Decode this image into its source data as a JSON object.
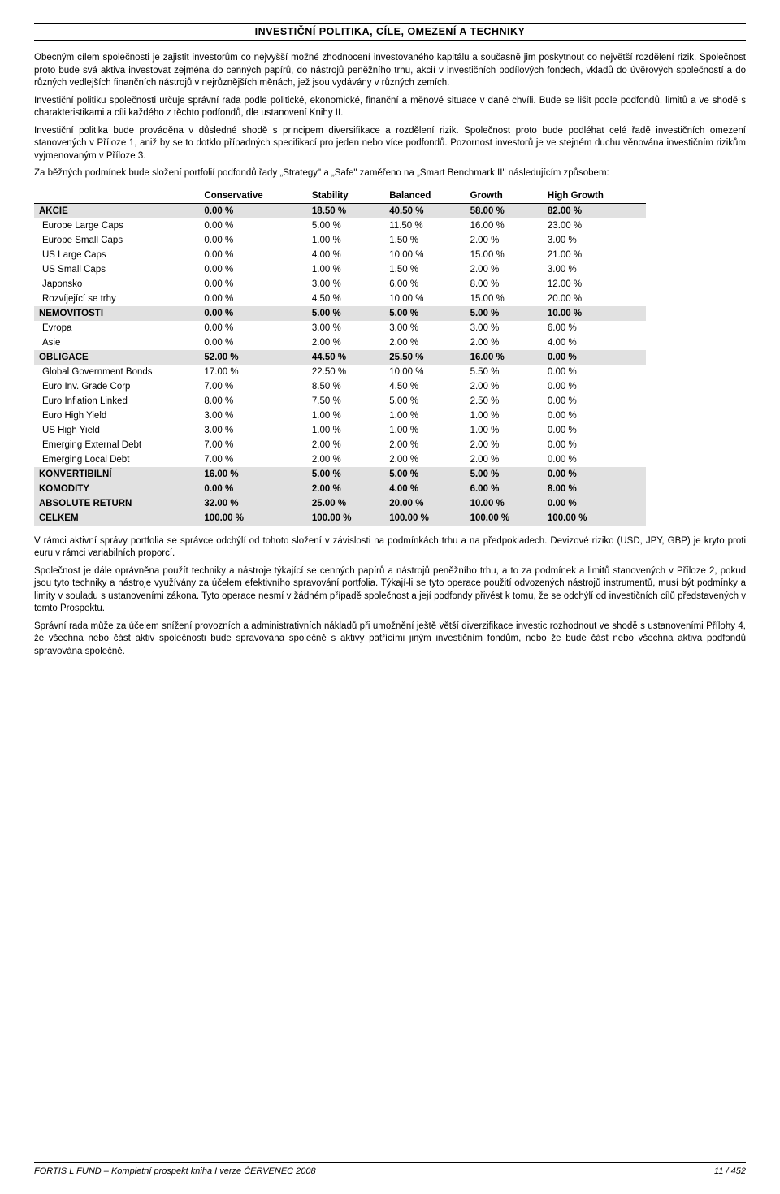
{
  "header": {
    "title": "INVESTIČNÍ POLITIKA, CÍLE, OMEZENÍ A TECHNIKY"
  },
  "paragraphs_top": [
    "Obecným cílem společnosti je zajistit investorům co nejvyšší možné zhodnocení investovaného kapitálu a současně jim poskytnout co největší rozdělení rizik. Společnost proto bude svá aktiva investovat zejména do cenných papírů, do nástrojů peněžního trhu, akcií v investičních podílových fondech, vkladů do úvěrových společností a do různých vedlejších finančních nástrojů v nejrůznějších měnách, jež jsou vydávány v různých zemích.",
    "Investiční politiku společnosti určuje správní rada podle politické, ekonomické, finanční a měnové situace v dané chvíli. Bude se lišit podle podfondů, limitů a ve shodě s charakteristikami a cíli každého z těchto podfondů, dle ustanovení Knihy II.",
    "Investiční politika bude prováděna v důsledné shodě s principem diversifikace a rozdělení rizik. Společnost proto bude podléhat celé řadě investičních omezení stanovených v Příloze 1, aniž by se to dotklo případných specifikací pro jeden nebo více podfondů. Pozornost investorů je ve stejném duchu věnována investičním rizikům vyjmenovaným v Příloze 3.",
    "Za běžných podmínek bude složení portfolií podfondů řady „Strategy\" a „Safe\" zaměřeno na „Smart Benchmark II\" následujícím způsobem:"
  ],
  "table": {
    "columns": [
      "",
      "Conservative",
      "Stability",
      "Balanced",
      "Growth",
      "High Growth"
    ],
    "rows": [
      {
        "cat": true,
        "cells": [
          "AKCIE",
          "0.00 %",
          "18.50 %",
          "40.50 %",
          "58.00 %",
          "82.00 %"
        ]
      },
      {
        "cat": false,
        "cells": [
          "Europe Large Caps",
          "0.00 %",
          "5.00 %",
          "11.50 %",
          "16.00 %",
          "23.00 %"
        ]
      },
      {
        "cat": false,
        "cells": [
          "Europe Small Caps",
          "0.00 %",
          "1.00 %",
          "1.50 %",
          "2.00 %",
          "3.00 %"
        ]
      },
      {
        "cat": false,
        "cells": [
          "US Large Caps",
          "0.00 %",
          "4.00 %",
          "10.00 %",
          "15.00 %",
          "21.00 %"
        ]
      },
      {
        "cat": false,
        "cells": [
          "US Small Caps",
          "0.00 %",
          "1.00 %",
          "1.50 %",
          "2.00 %",
          "3.00 %"
        ]
      },
      {
        "cat": false,
        "cells": [
          "Japonsko",
          "0.00 %",
          "3.00 %",
          "6.00 %",
          "8.00 %",
          "12.00 %"
        ]
      },
      {
        "cat": false,
        "cells": [
          "Rozvíjející se trhy",
          "0.00 %",
          "4.50 %",
          "10.00 %",
          "15.00 %",
          "20.00 %"
        ]
      },
      {
        "cat": true,
        "cells": [
          "NEMOVITOSTI",
          "0.00 %",
          "5.00 %",
          "5.00 %",
          "5.00 %",
          "10.00 %"
        ]
      },
      {
        "cat": false,
        "cells": [
          "Evropa",
          "0.00 %",
          "3.00 %",
          "3.00 %",
          "3.00 %",
          "6.00 %"
        ]
      },
      {
        "cat": false,
        "cells": [
          "Asie",
          "0.00 %",
          "2.00 %",
          "2.00 %",
          "2.00 %",
          "4.00 %"
        ]
      },
      {
        "cat": true,
        "cells": [
          "OBLIGACE",
          "52.00 %",
          "44.50 %",
          "25.50 %",
          "16.00 %",
          "0.00 %"
        ]
      },
      {
        "cat": false,
        "cells": [
          "Global Government Bonds",
          "17.00 %",
          "22.50 %",
          "10.00 %",
          "5.50 %",
          "0.00 %"
        ]
      },
      {
        "cat": false,
        "cells": [
          "Euro Inv. Grade Corp",
          "7.00 %",
          "8.50 %",
          "4.50 %",
          "2.00 %",
          "0.00 %"
        ]
      },
      {
        "cat": false,
        "cells": [
          "Euro Inflation Linked",
          "8.00 %",
          "7.50 %",
          "5.00 %",
          "2.50 %",
          "0.00 %"
        ]
      },
      {
        "cat": false,
        "cells": [
          "Euro High Yield",
          "3.00 %",
          "1.00 %",
          "1.00 %",
          "1.00 %",
          "0.00 %"
        ]
      },
      {
        "cat": false,
        "cells": [
          "US High Yield",
          "3.00 %",
          "1.00 %",
          "1.00 %",
          "1.00 %",
          "0.00 %"
        ]
      },
      {
        "cat": false,
        "cells": [
          "Emerging External Debt",
          "7.00 %",
          "2.00 %",
          "2.00 %",
          "2.00 %",
          "0.00 %"
        ]
      },
      {
        "cat": false,
        "cells": [
          "Emerging Local Debt",
          "7.00 %",
          "2.00 %",
          "2.00 %",
          "2.00 %",
          "0.00 %"
        ]
      },
      {
        "cat": true,
        "cells": [
          "KONVERTIBILNÍ",
          "16.00 %",
          "5.00 %",
          "5.00 %",
          "5.00 %",
          "0.00 %"
        ]
      },
      {
        "cat": true,
        "cells": [
          "KOMODITY",
          "0.00 %",
          "2.00 %",
          "4.00 %",
          "6.00 %",
          "8.00 %"
        ]
      },
      {
        "cat": true,
        "cells": [
          "ABSOLUTE RETURN",
          "32.00 %",
          "25.00 %",
          "20.00 %",
          "10.00 %",
          "0.00 %"
        ]
      },
      {
        "cat": true,
        "cells": [
          "CELKEM",
          "100.00 %",
          "100.00 %",
          "100.00 %",
          "100.00 %",
          "100.00 %"
        ]
      }
    ]
  },
  "paragraphs_bottom": [
    "V rámci aktivní správy portfolia se správce odchýlí od tohoto složení v závislosti na podmínkách trhu a na předpokladech. Devizové riziko (USD, JPY, GBP) je kryto proti euru v rámci variabilních proporcí.",
    "Společnost je dále oprávněna použít techniky a nástroje týkající se cenných papírů a nástrojů peněžního trhu, a to za podmínek a limitů stanovených v Příloze 2, pokud jsou tyto techniky a nástroje využívány za účelem efektivního spravování portfolia. Týkají-li se tyto operace použití odvozených nástrojů instrumentů, musí být podmínky a limity v souladu s ustanoveními zákona. Tyto operace nesmí v žádném případě společnost a její podfondy přivést k tomu, že se odchýlí od investičních cílů představených v tomto Prospektu.",
    "Správní rada může za účelem snížení provozních a administrativních nákladů při umožnění ještě větší diverzifikace investic rozhodnout ve shodě s ustanoveními Přílohy 4, že všechna nebo část aktiv společnosti bude spravována společně s aktivy patřícími jiným investičním fondům, nebo že bude část nebo všechna aktiva podfondů spravována společně."
  ],
  "footer": {
    "left": "FORTIS L FUND – Kompletní prospekt   kniha I   verze ČERVENEC 2008",
    "right": "11 / 452"
  }
}
